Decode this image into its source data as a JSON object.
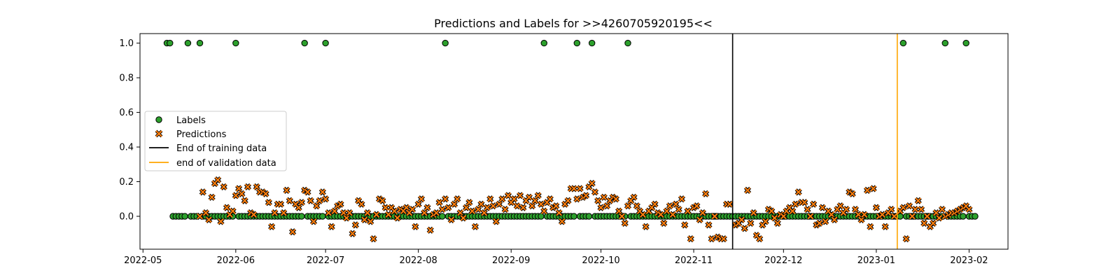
{
  "chart_data": {
    "type": "scatter",
    "title": "Predictions and Labels for >>4260705920195<<",
    "xlabel": "",
    "ylabel": "",
    "xlim": [
      "2022-04-30",
      "2023-02-14"
    ],
    "ylim": [
      -0.19,
      1.055
    ],
    "x_ticks": [
      "2022-05",
      "2022-06",
      "2022-07",
      "2022-08",
      "2022-09",
      "2022-10",
      "2022-11",
      "2022-12",
      "2023-01",
      "2023-02"
    ],
    "x_tick_dates": [
      "2022-05-01",
      "2022-06-01",
      "2022-07-01",
      "2022-08-01",
      "2022-09-01",
      "2022-10-01",
      "2022-11-01",
      "2022-12-01",
      "2023-01-01",
      "2023-02-01"
    ],
    "y_ticks": [
      "0.0",
      "0.2",
      "0.4",
      "0.6",
      "0.8",
      "1.0"
    ],
    "y_tick_values": [
      0,
      0.2,
      0.4,
      0.6,
      0.8,
      1.0
    ],
    "grid": false,
    "legend_placement": "center-left",
    "legend": [
      {
        "label": "Labels",
        "marker": "circle",
        "color": "#2ca02c"
      },
      {
        "label": "Predictions",
        "marker": "x",
        "color": "#ff7f0e"
      },
      {
        "label": "End of training data",
        "marker": "line",
        "color": "#000000"
      },
      {
        "label": "end of validation data",
        "marker": "line",
        "color": "#ffa500"
      }
    ],
    "vlines": [
      {
        "name": "End of training data",
        "date": "2022-11-14",
        "color": "#000000"
      },
      {
        "name": "end of validation data",
        "date": "2023-01-08",
        "color": "#ffa500"
      }
    ],
    "labels_series": {
      "name": "Labels",
      "start_date": "2022-05-09",
      "end_date": "2023-02-03",
      "ones_dates": [
        "2022-05-09",
        "2022-05-10",
        "2022-05-16",
        "2022-05-20",
        "2022-06-01",
        "2022-06-24",
        "2022-07-01",
        "2022-08-10",
        "2022-09-12",
        "2022-09-23",
        "2022-09-28",
        "2022-10-10",
        "2023-01-10",
        "2023-01-24",
        "2023-01-31"
      ]
    },
    "predictions_series": {
      "name": "Predictions",
      "points": [
        [
          "2022-05-20",
          0.0
        ],
        [
          "2022-05-21",
          0.14
        ],
        [
          "2022-05-22",
          0.02
        ],
        [
          "2022-05-23",
          -0.02
        ],
        [
          "2022-05-24",
          0.11
        ],
        [
          "2022-05-25",
          0.19
        ],
        [
          "2022-05-26",
          0.21
        ],
        [
          "2022-05-27",
          -0.03
        ],
        [
          "2022-05-28",
          0.17
        ],
        [
          "2022-05-29",
          0.05
        ],
        [
          "2022-05-30",
          0.01
        ],
        [
          "2022-05-31",
          0.03
        ],
        [
          "2022-06-01",
          0.12
        ],
        [
          "2022-06-02",
          0.16
        ],
        [
          "2022-06-03",
          0.13
        ],
        [
          "2022-06-04",
          0.09
        ],
        [
          "2022-06-05",
          0.17
        ],
        [
          "2022-06-06",
          0.02
        ],
        [
          "2022-06-07",
          0.01
        ],
        [
          "2022-06-08",
          0.17
        ],
        [
          "2022-06-09",
          0.14
        ],
        [
          "2022-06-10",
          0.14
        ],
        [
          "2022-06-11",
          0.13
        ],
        [
          "2022-06-12",
          0.08
        ],
        [
          "2022-06-13",
          -0.06
        ],
        [
          "2022-06-14",
          0.02
        ],
        [
          "2022-06-15",
          0.07
        ],
        [
          "2022-06-16",
          0.07
        ],
        [
          "2022-06-17",
          0.02
        ],
        [
          "2022-06-18",
          0.15
        ],
        [
          "2022-06-19",
          0.09
        ],
        [
          "2022-06-20",
          -0.09
        ],
        [
          "2022-06-21",
          0.07
        ],
        [
          "2022-06-22",
          0.05
        ],
        [
          "2022-06-23",
          0.08
        ],
        [
          "2022-06-24",
          0.15
        ],
        [
          "2022-06-25",
          0.14
        ],
        [
          "2022-06-26",
          0.09
        ],
        [
          "2022-06-27",
          -0.03
        ],
        [
          "2022-06-28",
          0.06
        ],
        [
          "2022-06-29",
          0.09
        ],
        [
          "2022-06-30",
          0.14
        ],
        [
          "2022-07-01",
          0.1
        ],
        [
          "2022-07-02",
          0.02
        ],
        [
          "2022-07-03",
          -0.06
        ],
        [
          "2022-07-04",
          0.03
        ],
        [
          "2022-07-05",
          0.06
        ],
        [
          "2022-07-06",
          0.07
        ],
        [
          "2022-07-07",
          0.02
        ],
        [
          "2022-07-08",
          -0.01
        ],
        [
          "2022-07-09",
          0.02
        ],
        [
          "2022-07-10",
          -0.1
        ],
        [
          "2022-07-11",
          -0.05
        ],
        [
          "2022-07-12",
          0.09
        ],
        [
          "2022-07-13",
          0.07
        ],
        [
          "2022-07-14",
          -0.02
        ],
        [
          "2022-07-15",
          0.02
        ],
        [
          "2022-07-16",
          -0.03
        ],
        [
          "2022-07-17",
          -0.13
        ],
        [
          "2022-07-18",
          0.01
        ],
        [
          "2022-07-19",
          0.1
        ],
        [
          "2022-07-20",
          0.09
        ],
        [
          "2022-07-21",
          0.05
        ],
        [
          "2022-07-22",
          0.01
        ],
        [
          "2022-07-23",
          0.05
        ],
        [
          "2022-07-24",
          0.03
        ],
        [
          "2022-07-25",
          -0.01
        ],
        [
          "2022-07-26",
          0.04
        ],
        [
          "2022-07-27",
          0.03
        ],
        [
          "2022-07-28",
          0.05
        ],
        [
          "2022-07-29",
          0.02
        ],
        [
          "2022-07-30",
          0.04
        ],
        [
          "2022-07-31",
          -0.06
        ],
        [
          "2022-08-01",
          0.07
        ],
        [
          "2022-08-02",
          0.1
        ],
        [
          "2022-08-03",
          0.02
        ],
        [
          "2022-08-04",
          0.05
        ],
        [
          "2022-08-05",
          -0.08
        ],
        [
          "2022-08-06",
          0.01
        ],
        [
          "2022-08-07",
          0.02
        ],
        [
          "2022-08-08",
          0.08
        ],
        [
          "2022-08-09",
          0.04
        ],
        [
          "2022-08-10",
          0.1
        ],
        [
          "2022-08-11",
          0.05
        ],
        [
          "2022-08-12",
          -0.02
        ],
        [
          "2022-08-13",
          0.07
        ],
        [
          "2022-08-14",
          0.1
        ],
        [
          "2022-08-15",
          0.02
        ],
        [
          "2022-08-16",
          -0.01
        ],
        [
          "2022-08-17",
          0.05
        ],
        [
          "2022-08-18",
          0.08
        ],
        [
          "2022-08-19",
          0.03
        ],
        [
          "2022-08-20",
          -0.06
        ],
        [
          "2022-08-21",
          0.04
        ],
        [
          "2022-08-22",
          0.07
        ],
        [
          "2022-08-23",
          0.02
        ],
        [
          "2022-08-24",
          0.05
        ],
        [
          "2022-08-25",
          0.1
        ],
        [
          "2022-08-26",
          0.06
        ],
        [
          "2022-08-27",
          -0.03
        ],
        [
          "2022-08-28",
          0.07
        ],
        [
          "2022-08-29",
          0.1
        ],
        [
          "2022-08-30",
          0.04
        ],
        [
          "2022-08-31",
          0.12
        ],
        [
          "2022-09-01",
          0.08
        ],
        [
          "2022-09-02",
          0.1
        ],
        [
          "2022-09-03",
          0.06
        ],
        [
          "2022-09-04",
          0.12
        ],
        [
          "2022-09-05",
          0.05
        ],
        [
          "2022-09-06",
          0.09
        ],
        [
          "2022-09-07",
          0.11
        ],
        [
          "2022-09-08",
          0.06
        ],
        [
          "2022-09-09",
          0.09
        ],
        [
          "2022-09-10",
          0.12
        ],
        [
          "2022-09-11",
          0.07
        ],
        [
          "2022-09-12",
          0.03
        ],
        [
          "2022-09-13",
          0.08
        ],
        [
          "2022-09-14",
          0.1
        ],
        [
          "2022-09-15",
          0.05
        ],
        [
          "2022-09-16",
          0.06
        ],
        [
          "2022-09-17",
          0.02
        ],
        [
          "2022-09-18",
          -0.03
        ],
        [
          "2022-09-19",
          0.07
        ],
        [
          "2022-09-20",
          0.09
        ],
        [
          "2022-09-21",
          0.16
        ],
        [
          "2022-09-22",
          0.16
        ],
        [
          "2022-09-23",
          0.1
        ],
        [
          "2022-09-24",
          0.16
        ],
        [
          "2022-09-25",
          0.11
        ],
        [
          "2022-09-26",
          0.12
        ],
        [
          "2022-09-27",
          0.17
        ],
        [
          "2022-09-28",
          0.19
        ],
        [
          "2022-09-29",
          0.14
        ],
        [
          "2022-09-30",
          0.09
        ],
        [
          "2022-10-01",
          0.05
        ],
        [
          "2022-10-02",
          0.11
        ],
        [
          "2022-10-03",
          0.06
        ],
        [
          "2022-10-04",
          0.09
        ],
        [
          "2022-10-05",
          0.11
        ],
        [
          "2022-10-06",
          0.1
        ],
        [
          "2022-10-07",
          0.03
        ],
        [
          "2022-10-08",
          0.0
        ],
        [
          "2022-10-09",
          -0.04
        ],
        [
          "2022-10-10",
          0.06
        ],
        [
          "2022-10-11",
          0.09
        ],
        [
          "2022-10-12",
          0.11
        ],
        [
          "2022-10-13",
          0.06
        ],
        [
          "2022-10-14",
          0.03
        ],
        [
          "2022-10-15",
          0.01
        ],
        [
          "2022-10-16",
          -0.06
        ],
        [
          "2022-10-17",
          0.03
        ],
        [
          "2022-10-18",
          0.05
        ],
        [
          "2022-10-19",
          0.07
        ],
        [
          "2022-10-20",
          0.02
        ],
        [
          "2022-10-21",
          0.01
        ],
        [
          "2022-10-22",
          -0.04
        ],
        [
          "2022-10-23",
          0.03
        ],
        [
          "2022-10-24",
          0.06
        ],
        [
          "2022-10-25",
          0.01
        ],
        [
          "2022-10-26",
          0.07
        ],
        [
          "2022-10-27",
          0.04
        ],
        [
          "2022-10-28",
          0.1
        ],
        [
          "2022-10-29",
          -0.05
        ],
        [
          "2022-10-30",
          0.03
        ],
        [
          "2022-10-31",
          -0.13
        ],
        [
          "2022-11-01",
          0.05
        ],
        [
          "2022-11-02",
          0.06
        ],
        [
          "2022-11-03",
          -0.02
        ],
        [
          "2022-11-04",
          0.02
        ],
        [
          "2022-11-05",
          0.13
        ],
        [
          "2022-11-06",
          -0.05
        ],
        [
          "2022-11-07",
          -0.13
        ],
        [
          "2022-11-08",
          0.0
        ],
        [
          "2022-11-09",
          -0.12
        ],
        [
          "2022-11-10",
          -0.13
        ],
        [
          "2022-11-11",
          -0.13
        ],
        [
          "2022-11-12",
          0.07
        ],
        [
          "2022-11-13",
          0.07
        ],
        [
          "2022-11-15",
          -0.05
        ],
        [
          "2022-11-16",
          -0.04
        ],
        [
          "2022-11-17",
          -0.02
        ],
        [
          "2022-11-18",
          -0.07
        ],
        [
          "2022-11-19",
          0.15
        ],
        [
          "2022-11-20",
          -0.04
        ],
        [
          "2022-11-21",
          0.02
        ],
        [
          "2022-11-22",
          -0.11
        ],
        [
          "2022-11-23",
          -0.13
        ],
        [
          "2022-11-24",
          -0.05
        ],
        [
          "2022-11-25",
          -0.03
        ],
        [
          "2022-11-26",
          0.04
        ],
        [
          "2022-11-27",
          0.03
        ],
        [
          "2022-11-28",
          -0.01
        ],
        [
          "2022-11-29",
          -0.04
        ],
        [
          "2022-11-30",
          0.01
        ],
        [
          "2022-12-01",
          0.0
        ],
        [
          "2022-12-02",
          0.03
        ],
        [
          "2022-12-03",
          0.05
        ],
        [
          "2022-12-04",
          0.03
        ],
        [
          "2022-12-05",
          0.07
        ],
        [
          "2022-12-06",
          0.14
        ],
        [
          "2022-12-07",
          0.08
        ],
        [
          "2022-12-08",
          0.08
        ],
        [
          "2022-12-09",
          0.04
        ],
        [
          "2022-12-10",
          0.0
        ],
        [
          "2022-12-11",
          0.07
        ],
        [
          "2022-12-12",
          -0.05
        ],
        [
          "2022-12-13",
          -0.04
        ],
        [
          "2022-12-14",
          0.05
        ],
        [
          "2022-12-15",
          -0.03
        ],
        [
          "2022-12-16",
          0.03
        ],
        [
          "2022-12-17",
          0.01
        ],
        [
          "2022-12-18",
          -0.02
        ],
        [
          "2022-12-19",
          0.04
        ],
        [
          "2022-12-20",
          0.06
        ],
        [
          "2022-12-21",
          0.02
        ],
        [
          "2022-12-22",
          0.04
        ],
        [
          "2022-12-23",
          0.14
        ],
        [
          "2022-12-24",
          0.13
        ],
        [
          "2022-12-25",
          0.04
        ],
        [
          "2022-12-26",
          0.01
        ],
        [
          "2022-12-27",
          -0.02
        ],
        [
          "2022-12-28",
          0.01
        ],
        [
          "2022-12-29",
          0.15
        ],
        [
          "2022-12-30",
          -0.06
        ],
        [
          "2022-12-31",
          0.16
        ],
        [
          "2023-01-01",
          0.05
        ],
        [
          "2023-01-02",
          0.0
        ],
        [
          "2023-01-03",
          0.01
        ],
        [
          "2023-01-04",
          -0.06
        ],
        [
          "2023-01-05",
          0.02
        ],
        [
          "2023-01-06",
          0.04
        ],
        [
          "2023-01-07",
          0.0
        ],
        [
          "2023-01-09",
          0.03
        ],
        [
          "2023-01-10",
          0.05
        ],
        [
          "2023-01-11",
          -0.13
        ],
        [
          "2023-01-12",
          0.06
        ],
        [
          "2023-01-13",
          0.0
        ],
        [
          "2023-01-14",
          0.04
        ],
        [
          "2023-01-15",
          0.09
        ],
        [
          "2023-01-16",
          0.04
        ],
        [
          "2023-01-17",
          -0.04
        ],
        [
          "2023-01-18",
          0.0
        ],
        [
          "2023-01-19",
          -0.06
        ],
        [
          "2023-01-20",
          -0.04
        ],
        [
          "2023-01-21",
          0.02
        ],
        [
          "2023-01-22",
          -0.01
        ],
        [
          "2023-01-23",
          0.04
        ],
        [
          "2023-01-24",
          0.0
        ],
        [
          "2023-01-25",
          0.01
        ],
        [
          "2023-01-26",
          0.02
        ],
        [
          "2023-01-27",
          0.02
        ],
        [
          "2023-01-28",
          0.03
        ],
        [
          "2023-01-29",
          0.04
        ],
        [
          "2023-01-30",
          0.05
        ],
        [
          "2023-01-31",
          0.06
        ],
        [
          "2023-02-01",
          0.04
        ]
      ]
    }
  }
}
